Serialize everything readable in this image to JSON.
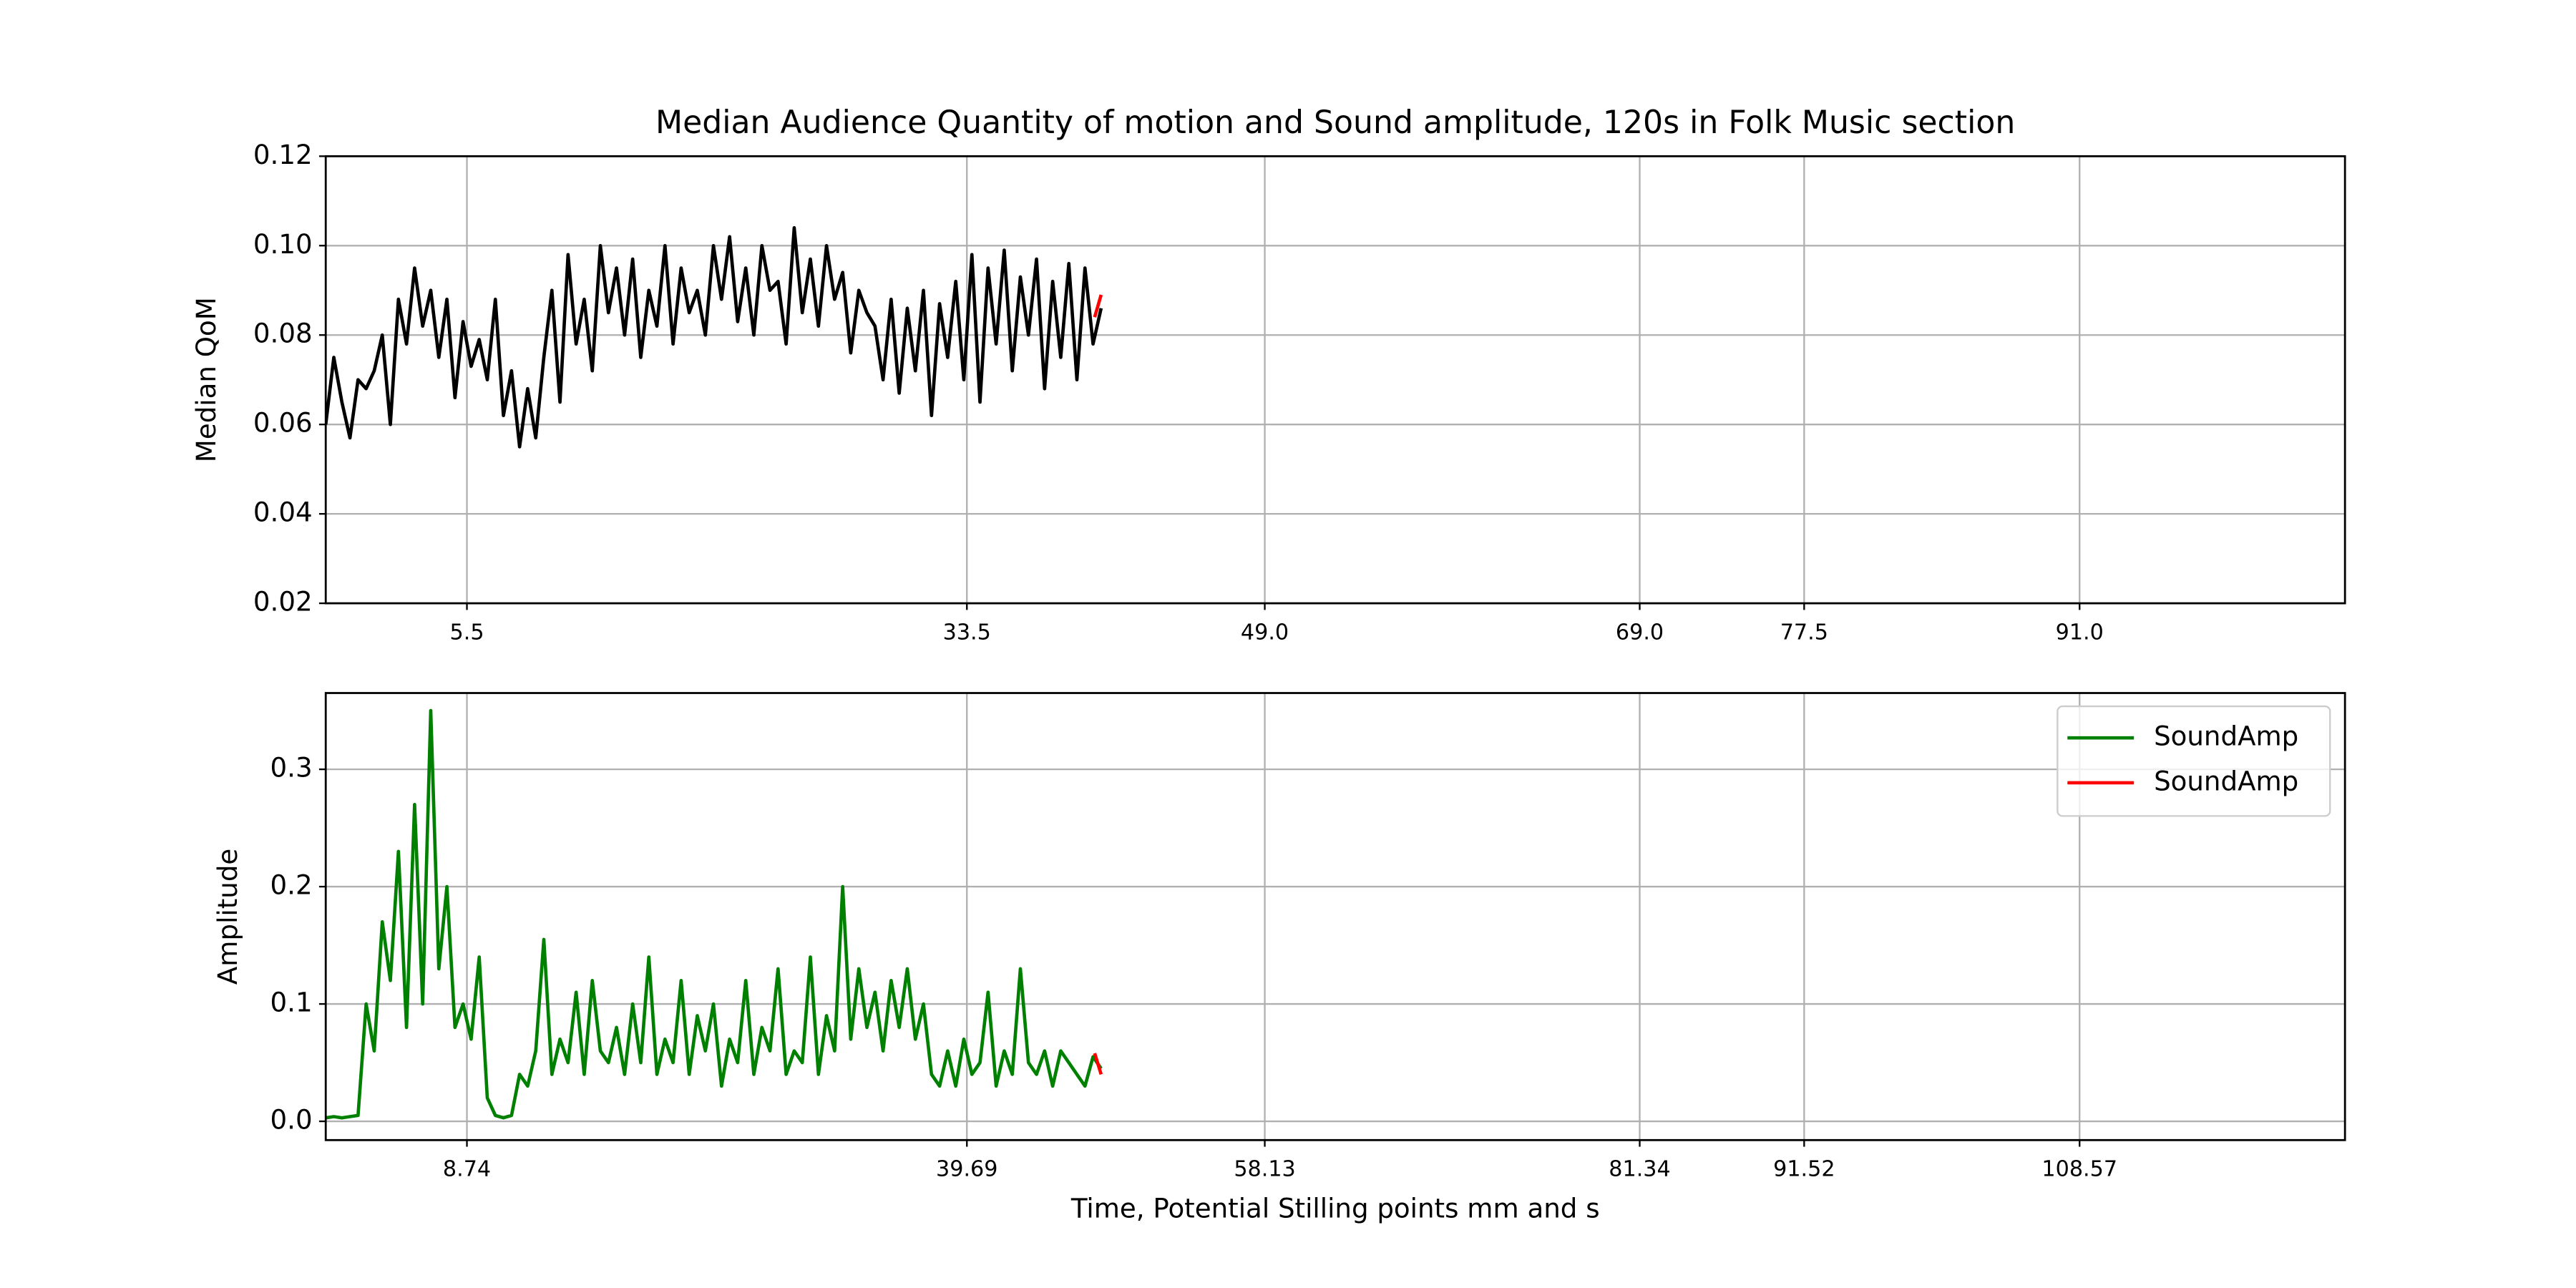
{
  "chart_data": [
    {
      "type": "line",
      "title": "Median Audience Quantity of motion and Sound amplitude, 120s in Folk Music section",
      "ylabel": "Median QoM",
      "xlim": [
        0,
        125
      ],
      "ylim": [
        0.02,
        0.12
      ],
      "grid": true,
      "xticks": [
        {
          "value": 8.74,
          "label": "5.5"
        },
        {
          "value": 39.69,
          "label": "33.5"
        },
        {
          "value": 58.13,
          "label": "49.0"
        },
        {
          "value": 81.34,
          "label": "69.0"
        },
        {
          "value": 91.52,
          "label": "77.5"
        },
        {
          "value": 108.57,
          "label": "91.0"
        }
      ],
      "yticks": [
        0.02,
        0.04,
        0.06,
        0.08,
        {
          "value": 0.1,
          "label": "0.10"
        },
        0.12
      ],
      "series": [
        {
          "color": "#000000",
          "x": [
            0,
            0.5,
            1,
            1.5,
            2,
            2.5,
            3,
            3.5,
            4,
            4.5,
            5,
            5.5,
            6,
            6.5,
            7,
            7.5,
            8,
            8.5,
            9,
            9.5,
            10,
            10.5,
            11,
            11.5,
            12,
            12.5,
            13,
            13.5,
            14,
            14.5,
            15,
            15.5,
            16,
            16.5,
            17,
            17.5,
            18,
            18.5,
            19,
            19.5,
            20,
            20.5,
            21,
            21.5,
            22,
            22.5,
            23,
            23.5,
            24,
            24.5,
            25,
            25.5,
            26,
            26.5,
            27,
            27.5,
            28,
            28.5,
            29,
            29.5,
            30,
            30.5,
            31,
            31.5,
            32,
            32.5,
            33,
            33.5,
            34,
            34.5,
            35,
            35.5,
            36,
            36.5,
            37,
            37.5,
            38,
            38.5,
            39,
            39.5,
            40,
            40.5,
            41,
            41.5,
            42,
            42.5,
            43,
            43.5,
            44,
            44.5,
            45,
            45.5,
            46,
            46.5,
            47,
            47.5,
            48
          ],
          "values": [
            0.06,
            0.075,
            0.065,
            0.057,
            0.07,
            0.068,
            0.072,
            0.08,
            0.06,
            0.088,
            0.078,
            0.095,
            0.082,
            0.09,
            0.075,
            0.088,
            0.066,
            0.083,
            0.073,
            0.079,
            0.07,
            0.088,
            0.062,
            0.072,
            0.055,
            0.068,
            0.057,
            0.075,
            0.09,
            0.065,
            0.098,
            0.078,
            0.088,
            0.072,
            0.1,
            0.085,
            0.095,
            0.08,
            0.097,
            0.075,
            0.09,
            0.082,
            0.1,
            0.078,
            0.095,
            0.085,
            0.09,
            0.08,
            0.1,
            0.088,
            0.102,
            0.083,
            0.095,
            0.08,
            0.1,
            0.09,
            0.092,
            0.078,
            0.104,
            0.085,
            0.097,
            0.082,
            0.1,
            0.088,
            0.094,
            0.076,
            0.09,
            0.085,
            0.082,
            0.07,
            0.088,
            0.067,
            0.086,
            0.072,
            0.09,
            0.062,
            0.087,
            0.075,
            0.092,
            0.07,
            0.098,
            0.065,
            0.095,
            0.078,
            0.099,
            0.072,
            0.093,
            0.08,
            0.097,
            0.068,
            0.092,
            0.075,
            0.096,
            0.07,
            0.095,
            0.078,
            0.086
          ]
        },
        {
          "color": "#ff0000",
          "x": [
            47.6,
            48
          ],
          "values": [
            0.084,
            0.089
          ]
        }
      ]
    },
    {
      "type": "line",
      "xlabel": "Time, Potential Stilling points mm and s",
      "ylabel": "Amplitude",
      "xlim": [
        0,
        125
      ],
      "ylim": [
        -0.016,
        0.365
      ],
      "grid": true,
      "legend": "upper right",
      "xticks": [
        8.74,
        39.69,
        58.13,
        81.34,
        91.52,
        108.57
      ],
      "yticks": [
        {
          "value": 0,
          "label": "0.0"
        },
        0.1,
        0.2,
        0.3
      ],
      "series": [
        {
          "name": "SoundAmp",
          "color": "#008000",
          "x": [
            0,
            0.5,
            1,
            1.5,
            2,
            2.5,
            3,
            3.5,
            4,
            4.5,
            5,
            5.5,
            6,
            6.5,
            7,
            7.5,
            8,
            8.5,
            9,
            9.5,
            10,
            10.5,
            11,
            11.5,
            12,
            12.5,
            13,
            13.5,
            14,
            14.5,
            15,
            15.5,
            16,
            16.5,
            17,
            17.5,
            18,
            18.5,
            19,
            19.5,
            20,
            20.5,
            21,
            21.5,
            22,
            22.5,
            23,
            23.5,
            24,
            24.5,
            25,
            25.5,
            26,
            26.5,
            27,
            27.5,
            28,
            28.5,
            29,
            29.5,
            30,
            30.5,
            31,
            31.5,
            32,
            32.5,
            33,
            33.5,
            34,
            34.5,
            35,
            35.5,
            36,
            36.5,
            37,
            37.5,
            38,
            38.5,
            39,
            39.5,
            40,
            40.5,
            41,
            41.5,
            42,
            42.5,
            43,
            43.5,
            44,
            44.5,
            45,
            45.5,
            46,
            46.5,
            47,
            47.5,
            48
          ],
          "values": [
            0.003,
            0.004,
            0.003,
            0.004,
            0.005,
            0.1,
            0.06,
            0.17,
            0.12,
            0.23,
            0.08,
            0.27,
            0.1,
            0.35,
            0.13,
            0.2,
            0.08,
            0.1,
            0.07,
            0.14,
            0.02,
            0.005,
            0.003,
            0.005,
            0.04,
            0.03,
            0.06,
            0.155,
            0.04,
            0.07,
            0.05,
            0.11,
            0.04,
            0.12,
            0.06,
            0.05,
            0.08,
            0.04,
            0.1,
            0.05,
            0.14,
            0.04,
            0.07,
            0.05,
            0.12,
            0.04,
            0.09,
            0.06,
            0.1,
            0.03,
            0.07,
            0.05,
            0.12,
            0.04,
            0.08,
            0.06,
            0.13,
            0.04,
            0.06,
            0.05,
            0.14,
            0.04,
            0.09,
            0.06,
            0.2,
            0.07,
            0.13,
            0.08,
            0.11,
            0.06,
            0.12,
            0.08,
            0.13,
            0.07,
            0.1,
            0.04,
            0.03,
            0.06,
            0.03,
            0.07,
            0.04,
            0.05,
            0.11,
            0.03,
            0.06,
            0.04,
            0.13,
            0.05,
            0.04,
            0.06,
            0.03,
            0.06,
            0.05,
            0.04,
            0.03,
            0.055,
            0.045
          ]
        },
        {
          "name": "SoundAmp",
          "color": "#ff0000",
          "x": [
            47.6,
            48
          ],
          "values": [
            0.058,
            0.04
          ]
        }
      ]
    }
  ]
}
